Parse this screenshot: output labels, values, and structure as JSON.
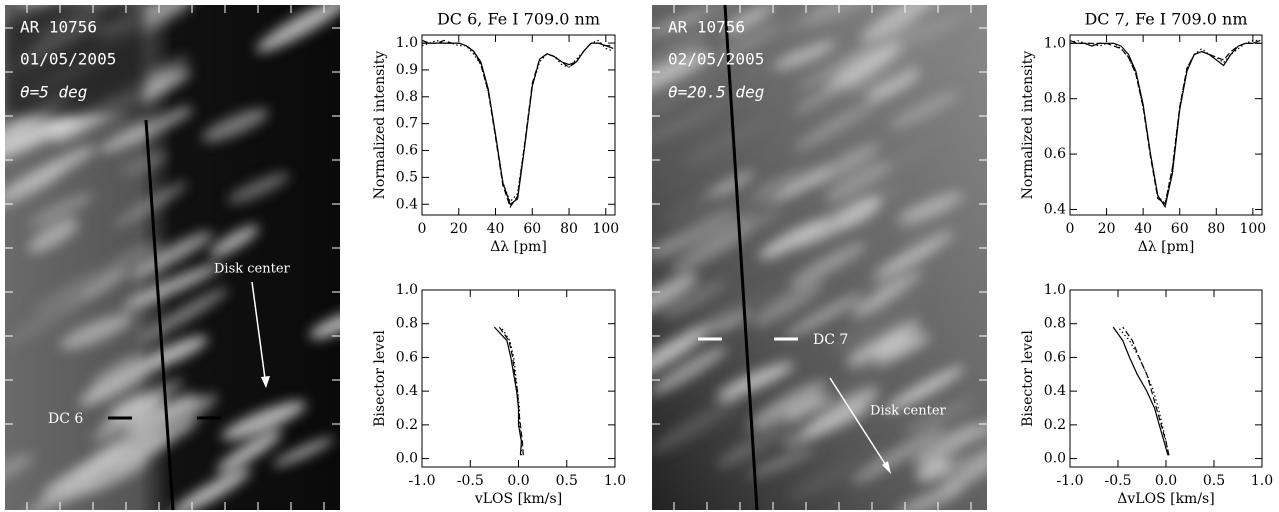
{
  "chart_data": [
    {
      "type": "line",
      "title": "DC 6, Fe I 709.0 nm",
      "x_label": "Δλ [pm]",
      "y_label": "Normalized intensity",
      "x": [
        0,
        4,
        8,
        12,
        16,
        20,
        24,
        28,
        32,
        36,
        40,
        44,
        48,
        52,
        56,
        60,
        64,
        68,
        72,
        76,
        80,
        84,
        88,
        92,
        96,
        100,
        104
      ],
      "series": [
        {
          "color": "#000000",
          "style": "solid",
          "values": [
            1.0,
            1.0,
            1.0,
            1.0,
            1.0,
            1.0,
            0.99,
            0.97,
            0.93,
            0.83,
            0.66,
            0.48,
            0.4,
            0.42,
            0.62,
            0.84,
            0.94,
            0.96,
            0.95,
            0.93,
            0.92,
            0.93,
            0.97,
            1.0,
            1.0,
            0.99,
            0.98
          ]
        },
        {
          "color": "#000000",
          "style": "dashed",
          "values": [
            1.01,
            1.0,
            1.0,
            1.01,
            1.0,
            1.0,
            0.99,
            0.97,
            0.92,
            0.82,
            0.65,
            0.47,
            0.39,
            0.43,
            0.63,
            0.85,
            0.94,
            0.96,
            0.95,
            0.93,
            0.91,
            0.93,
            0.97,
            1.0,
            1.0,
            0.99,
            0.99
          ]
        },
        {
          "color": "#000000",
          "style": "dotted",
          "values": [
            0.99,
            1.0,
            1.01,
            1.0,
            1.0,
            0.99,
            0.99,
            0.96,
            0.92,
            0.82,
            0.66,
            0.48,
            0.41,
            0.44,
            0.63,
            0.84,
            0.93,
            0.96,
            0.95,
            0.92,
            0.91,
            0.94,
            0.97,
            1.0,
            1.01,
            0.98,
            0.97
          ]
        }
      ],
      "xlim": [
        0,
        105
      ],
      "xticks": [
        0,
        20,
        40,
        60,
        80,
        100
      ],
      "ylim": [
        0.36,
        1.03
      ],
      "yticks": [
        0.4,
        0.5,
        0.6,
        0.7,
        0.8,
        0.9,
        {
          "value": 1,
          "label": "1.0"
        }
      ]
    },
    {
      "type": "line",
      "x_label": "vLOS [km/s]",
      "y_label": "Bisector level",
      "series": [
        {
          "color": "#000000",
          "style": "solid",
          "x": [
            0.02,
            0.03,
            0.0,
            0.0,
            -0.02,
            -0.05,
            -0.08,
            -0.12,
            -0.25
          ],
          "values": [
            0.02,
            0.1,
            0.2,
            0.3,
            0.4,
            0.5,
            0.6,
            0.7,
            0.78
          ]
        },
        {
          "color": "#000000",
          "style": "dashed",
          "x": [
            0.05,
            0.04,
            0.02,
            0.0,
            -0.01,
            -0.04,
            -0.06,
            -0.1,
            -0.2
          ],
          "values": [
            0.02,
            0.1,
            0.2,
            0.3,
            0.4,
            0.5,
            0.6,
            0.7,
            0.78
          ]
        },
        {
          "color": "#000000",
          "style": "dotted",
          "x": [
            0.03,
            0.03,
            0.01,
            0.01,
            -0.01,
            -0.03,
            -0.05,
            -0.09,
            -0.18
          ],
          "values": [
            0.02,
            0.1,
            0.2,
            0.3,
            0.4,
            0.5,
            0.6,
            0.7,
            0.78
          ]
        }
      ],
      "xlim": [
        -1,
        1
      ],
      "xticks": [
        {
          "value": -1,
          "label": "-1.0"
        },
        -0.5,
        {
          "value": 0,
          "label": "0.0"
        },
        0.5,
        {
          "value": 1,
          "label": "1.0"
        }
      ],
      "ylim": [
        -0.05,
        1.0
      ],
      "yticks": [
        {
          "value": 0,
          "label": "0.0"
        },
        0.2,
        0.4,
        0.6,
        0.8,
        {
          "value": 1,
          "label": "1.0"
        }
      ]
    },
    {
      "type": "line",
      "title": "DC 7, Fe I 709.0 nm",
      "x_label": "Δλ [pm]",
      "y_label": "Normalized intensity",
      "x": [
        0,
        4,
        8,
        12,
        16,
        20,
        24,
        28,
        32,
        36,
        40,
        44,
        48,
        52,
        56,
        60,
        64,
        68,
        72,
        76,
        80,
        84,
        88,
        92,
        96,
        100,
        104
      ],
      "series": [
        {
          "color": "#000000",
          "style": "solid",
          "values": [
            1.0,
            1.0,
            1.0,
            0.99,
            1.0,
            1.0,
            1.0,
            0.99,
            0.96,
            0.9,
            0.78,
            0.6,
            0.45,
            0.41,
            0.53,
            0.76,
            0.9,
            0.96,
            0.97,
            0.96,
            0.94,
            0.92,
            0.96,
            0.99,
            1.0,
            1.0,
            1.01
          ]
        },
        {
          "color": "#000000",
          "style": "dashed",
          "values": [
            1.01,
            1.0,
            1.0,
            1.0,
            1.0,
            1.0,
            0.99,
            0.98,
            0.95,
            0.89,
            0.77,
            0.59,
            0.44,
            0.42,
            0.55,
            0.77,
            0.91,
            0.96,
            0.97,
            0.96,
            0.95,
            0.94,
            0.97,
            0.99,
            1.0,
            1.0,
            1.0
          ]
        },
        {
          "color": "#000000",
          "style": "dotted",
          "values": [
            1.0,
            1.01,
            1.0,
            1.0,
            0.99,
            1.0,
            1.0,
            0.98,
            0.95,
            0.89,
            0.77,
            0.6,
            0.45,
            0.42,
            0.55,
            0.77,
            0.91,
            0.96,
            0.98,
            0.96,
            0.95,
            0.93,
            0.96,
            0.98,
            1.0,
            1.01,
            1.01
          ]
        }
      ],
      "xlim": [
        0,
        105
      ],
      "xticks": [
        0,
        20,
        40,
        60,
        80,
        100
      ],
      "ylim": [
        0.38,
        1.03
      ],
      "yticks": [
        0.4,
        0.6,
        0.8,
        {
          "value": 1,
          "label": "1.0"
        }
      ]
    },
    {
      "type": "line",
      "x_label": "ΔvLOS [km/s]",
      "y_label": "Bisector level",
      "series": [
        {
          "color": "#000000",
          "style": "solid",
          "x": [
            0.02,
            -0.02,
            -0.07,
            -0.12,
            -0.2,
            -0.3,
            -0.38,
            -0.45,
            -0.55
          ],
          "values": [
            0.02,
            0.1,
            0.2,
            0.3,
            0.4,
            0.5,
            0.6,
            0.7,
            0.78
          ]
        },
        {
          "color": "#000000",
          "style": "dashed",
          "x": [
            0.03,
            0.0,
            -0.05,
            -0.1,
            -0.15,
            -0.2,
            -0.28,
            -0.35,
            -0.45
          ],
          "values": [
            0.02,
            0.1,
            0.2,
            0.3,
            0.4,
            0.5,
            0.6,
            0.7,
            0.78
          ]
        },
        {
          "color": "#000000",
          "style": "dotted",
          "x": [
            0.03,
            0.0,
            -0.04,
            -0.08,
            -0.13,
            -0.2,
            -0.28,
            -0.38,
            -0.5
          ],
          "values": [
            0.02,
            0.1,
            0.2,
            0.3,
            0.4,
            0.5,
            0.6,
            0.7,
            0.78
          ]
        }
      ],
      "xlim": [
        -1,
        1
      ],
      "xticks": [
        {
          "value": -1,
          "label": "-1.0"
        },
        -0.5,
        {
          "value": 0,
          "label": "0.0"
        },
        0.5,
        {
          "value": 1,
          "label": "1.0"
        }
      ],
      "ylim": [
        -0.05,
        1.0
      ],
      "yticks": [
        {
          "value": 0,
          "label": "0.0"
        },
        0.2,
        0.4,
        0.6,
        0.8,
        {
          "value": 1,
          "label": "1.0"
        }
      ]
    }
  ],
  "images": [
    {
      "lines": [
        "AR 10756",
        "01/05/2005",
        "θ=5 deg"
      ],
      "slit_label": "DC 6",
      "arrow_label": "Disk center"
    },
    {
      "lines": [
        "AR 10756",
        "02/05/2005",
        "θ=20.5 deg"
      ],
      "slit_label": "DC 7",
      "arrow_label": "Disk center"
    }
  ]
}
